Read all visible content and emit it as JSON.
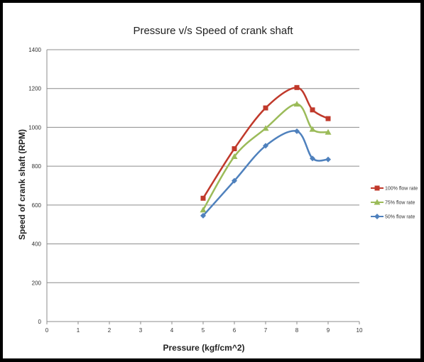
{
  "chart_data": {
    "type": "line",
    "title": "Pressure v/s Speed of crank shaft",
    "xlabel": "Pressure (kgf/cm^2)",
    "ylabel": "Speed of crank shaft (RPM)",
    "xlim": [
      0,
      10
    ],
    "ylim": [
      0,
      1400
    ],
    "xticks": [
      0,
      1,
      2,
      3,
      4,
      5,
      6,
      7,
      8,
      9,
      10
    ],
    "yticks": [
      0,
      200,
      400,
      600,
      800,
      1000,
      1200,
      1400
    ],
    "grid": "horizontal",
    "legend_position": "right",
    "series": [
      {
        "name": "100% flow rate",
        "color": "#c0392b",
        "marker": "square",
        "x": [
          5,
          6,
          7,
          8,
          8.5,
          9
        ],
        "y": [
          635,
          890,
          1100,
          1205,
          1090,
          1045
        ]
      },
      {
        "name": "75% flow rate",
        "color": "#9bbb59",
        "marker": "triangle",
        "x": [
          5,
          6,
          7,
          8,
          8.5,
          9
        ],
        "y": [
          575,
          850,
          995,
          1120,
          990,
          975
        ]
      },
      {
        "name": "50% flow rate",
        "color": "#4f81bd",
        "marker": "diamond",
        "x": [
          5,
          6,
          7,
          8,
          8.5,
          9
        ],
        "y": [
          545,
          725,
          905,
          980,
          840,
          835
        ]
      }
    ]
  }
}
